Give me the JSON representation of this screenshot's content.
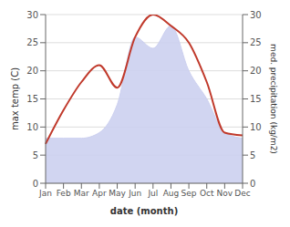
{
  "chart_data": {
    "type": "line",
    "categories": [
      "Jan",
      "Feb",
      "Mar",
      "Apr",
      "May",
      "Jun",
      "Jul",
      "Aug",
      "Sep",
      "Oct",
      "Nov",
      "Dec"
    ],
    "xlabel": "date (month)",
    "ylabel": "max temp (C)",
    "y2label": "med. precipitation (kg/m2)",
    "series": [
      {
        "type": "area",
        "axis": "y2",
        "color": "#ccd0f0",
        "values": [
          8,
          8,
          8,
          9,
          14,
          26,
          24,
          28,
          20,
          15,
          9,
          8
        ]
      },
      {
        "type": "line",
        "color": "#c0392b",
        "values": [
          7,
          13,
          18,
          21,
          17,
          26,
          30,
          28,
          25,
          18,
          9,
          8.5
        ]
      }
    ],
    "ylim": [
      0,
      30
    ],
    "yticks": [
      0,
      5,
      10,
      15,
      20,
      25,
      30
    ],
    "y2lim": [
      0,
      30
    ],
    "y2ticks": [
      0,
      5,
      10,
      15,
      20,
      25,
      30
    ],
    "grid": true
  }
}
